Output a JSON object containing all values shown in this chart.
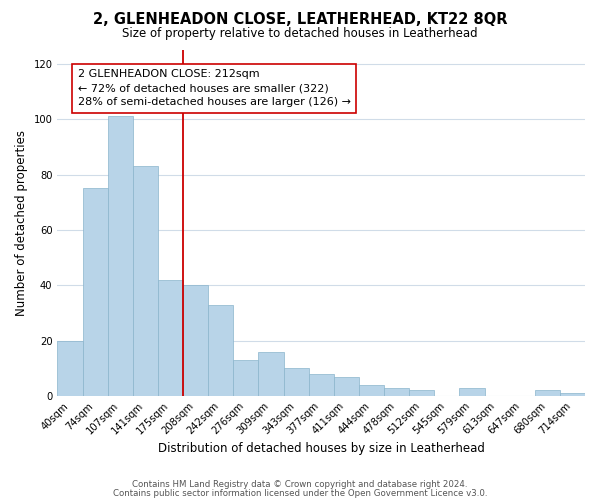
{
  "title": "2, GLENHEADON CLOSE, LEATHERHEAD, KT22 8QR",
  "subtitle": "Size of property relative to detached houses in Leatherhead",
  "xlabel": "Distribution of detached houses by size in Leatherhead",
  "ylabel": "Number of detached properties",
  "bar_color": "#b8d4e8",
  "bar_edge_color": "#8ab4cc",
  "categories": [
    "40sqm",
    "74sqm",
    "107sqm",
    "141sqm",
    "175sqm",
    "208sqm",
    "242sqm",
    "276sqm",
    "309sqm",
    "343sqm",
    "377sqm",
    "411sqm",
    "444sqm",
    "478sqm",
    "512sqm",
    "545sqm",
    "579sqm",
    "613sqm",
    "647sqm",
    "680sqm",
    "714sqm"
  ],
  "values": [
    20,
    75,
    101,
    83,
    42,
    40,
    33,
    13,
    16,
    10,
    8,
    7,
    4,
    3,
    2,
    0,
    3,
    0,
    0,
    2,
    1
  ],
  "vline_index": 5,
  "vline_color": "#cc0000",
  "annotation_text": "2 GLENHEADON CLOSE: 212sqm\n← 72% of detached houses are smaller (322)\n28% of semi-detached houses are larger (126) →",
  "ylim": [
    0,
    125
  ],
  "yticks": [
    0,
    20,
    40,
    60,
    80,
    100,
    120
  ],
  "footer1": "Contains HM Land Registry data © Crown copyright and database right 2024.",
  "footer2": "Contains public sector information licensed under the Open Government Licence v3.0.",
  "background_color": "#ffffff",
  "grid_color": "#d0dce8"
}
